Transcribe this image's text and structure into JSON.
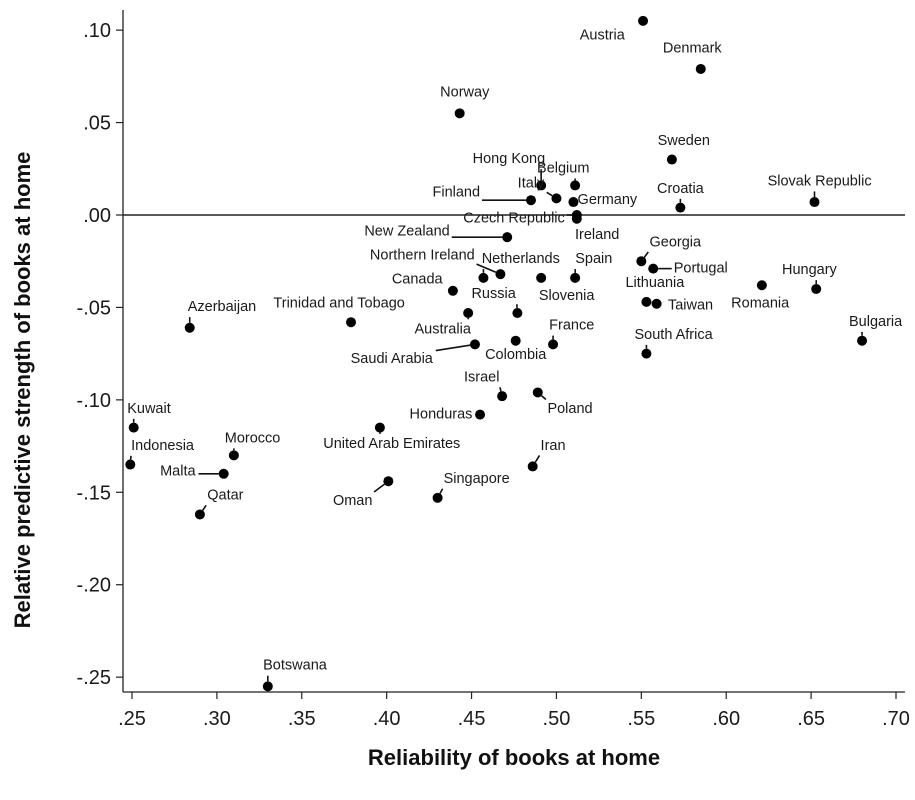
{
  "chart_data": {
    "type": "scatter",
    "xlabel": "Reliability of books at home",
    "ylabel": "Relative predictive strength of books at home",
    "xlim": [
      0.25,
      0.7
    ],
    "ylim": [
      -0.26,
      0.11
    ],
    "xticks": [
      0.25,
      0.3,
      0.35,
      0.4,
      0.45,
      0.5,
      0.55,
      0.6,
      0.65,
      0.7
    ],
    "xtick_labels": [
      ".25",
      ".30",
      ".35",
      ".40",
      ".45",
      ".50",
      ".55",
      ".60",
      ".65",
      ".70"
    ],
    "yticks": [
      0.1,
      0.05,
      0.0,
      -0.05,
      -0.1,
      -0.15,
      -0.2,
      -0.25
    ],
    "ytick_labels": [
      ".10",
      ".05",
      ".00",
      "-.05",
      "-.10",
      "-.15",
      "-.20",
      "-.25"
    ],
    "reference_line_y": 0.0,
    "grid": false,
    "points": [
      {
        "label": "Austria",
        "x": 0.551,
        "y": 0.105,
        "lx": 0.527,
        "ly": 0.095,
        "leader": false
      },
      {
        "label": "Denmark",
        "x": 0.585,
        "y": 0.079,
        "lx": 0.58,
        "ly": 0.088,
        "leader": false
      },
      {
        "label": "Norway",
        "x": 0.443,
        "y": 0.055,
        "lx": 0.446,
        "ly": 0.064,
        "leader": false
      },
      {
        "label": "Sweden",
        "x": 0.568,
        "y": 0.03,
        "lx": 0.575,
        "ly": 0.038,
        "leader": false
      },
      {
        "label": "Hong Kong",
        "x": 0.491,
        "y": 0.016,
        "lx": 0.472,
        "ly": 0.028,
        "leader": true
      },
      {
        "label": "Belgium",
        "x": 0.511,
        "y": 0.016,
        "lx": 0.504,
        "ly": 0.023,
        "leader": true
      },
      {
        "label": "Italy",
        "x": 0.5,
        "y": 0.009,
        "lx": 0.485,
        "ly": 0.015,
        "leader": true
      },
      {
        "label": "Finland",
        "x": 0.485,
        "y": 0.008,
        "lx": 0.441,
        "ly": 0.01,
        "leader": true
      },
      {
        "label": "Germany",
        "x": 0.51,
        "y": 0.007,
        "lx": 0.53,
        "ly": 0.006,
        "leader": true
      },
      {
        "label": "Croatia",
        "x": 0.573,
        "y": 0.004,
        "lx": 0.573,
        "ly": 0.012,
        "leader": true
      },
      {
        "label": "Slovak Republic",
        "x": 0.652,
        "y": 0.007,
        "lx": 0.655,
        "ly": 0.016,
        "leader": true
      },
      {
        "label": "Czech Republic",
        "x": 0.512,
        "y": 0.0,
        "lx": 0.475,
        "ly": -0.004,
        "leader": true
      },
      {
        "label": "New Zealand",
        "x": 0.471,
        "y": -0.012,
        "lx": 0.412,
        "ly": -0.011,
        "leader": true
      },
      {
        "label": "Ireland",
        "x": 0.512,
        "y": -0.002,
        "lx": 0.524,
        "ly": -0.013,
        "leader": false
      },
      {
        "label": "Georgia",
        "x": 0.55,
        "y": -0.025,
        "lx": 0.57,
        "ly": -0.017,
        "leader": true
      },
      {
        "label": "Portugal",
        "x": 0.557,
        "y": -0.029,
        "lx": 0.585,
        "ly": -0.031,
        "leader": true
      },
      {
        "label": "Northern Ireland",
        "x": 0.467,
        "y": -0.032,
        "lx": 0.421,
        "ly": -0.024,
        "leader": true
      },
      {
        "label": "Netherlands",
        "x": 0.457,
        "y": -0.034,
        "lx": 0.479,
        "ly": -0.026,
        "leader": true
      },
      {
        "label": "Spain",
        "x": 0.511,
        "y": -0.034,
        "lx": 0.522,
        "ly": -0.026,
        "leader": true
      },
      {
        "label": "Canada",
        "x": 0.439,
        "y": -0.041,
        "lx": 0.418,
        "ly": -0.037,
        "leader": false
      },
      {
        "label": "Hungary",
        "x": 0.653,
        "y": -0.04,
        "lx": 0.649,
        "ly": -0.032,
        "leader": true
      },
      {
        "label": "Romania",
        "x": 0.621,
        "y": -0.038,
        "lx": 0.62,
        "ly": -0.05,
        "leader": false
      },
      {
        "label": "Lithuania",
        "x": 0.553,
        "y": -0.047,
        "lx": 0.558,
        "ly": -0.039,
        "leader": false
      },
      {
        "label": "Taiwan",
        "x": 0.559,
        "y": -0.048,
        "lx": 0.579,
        "ly": -0.051,
        "leader": false
      },
      {
        "label": "Slovenia",
        "x": 0.491,
        "y": -0.034,
        "lx": 0.506,
        "ly": -0.046,
        "leader": false
      },
      {
        "label": "Russia",
        "x": 0.477,
        "y": -0.053,
        "lx": 0.463,
        "ly": -0.045,
        "leader": true
      },
      {
        "label": "Azerbaijan",
        "x": 0.284,
        "y": -0.061,
        "lx": 0.303,
        "ly": -0.052,
        "leader": true
      },
      {
        "label": "Trinidad and Tobago",
        "x": 0.379,
        "y": -0.058,
        "lx": 0.372,
        "ly": -0.05,
        "leader": false
      },
      {
        "label": "Australia",
        "x": 0.448,
        "y": -0.053,
        "lx": 0.433,
        "ly": -0.064,
        "leader": true
      },
      {
        "label": "France",
        "x": 0.498,
        "y": -0.07,
        "lx": 0.509,
        "ly": -0.062,
        "leader": true
      },
      {
        "label": "Bulgaria",
        "x": 0.68,
        "y": -0.068,
        "lx": 0.688,
        "ly": -0.06,
        "leader": true
      },
      {
        "label": "South Africa",
        "x": 0.553,
        "y": -0.075,
        "lx": 0.569,
        "ly": -0.067,
        "leader": true
      },
      {
        "label": "Saudi Arabia",
        "x": 0.452,
        "y": -0.07,
        "lx": 0.403,
        "ly": -0.08,
        "leader": true
      },
      {
        "label": "Colombia",
        "x": 0.476,
        "y": -0.068,
        "lx": 0.476,
        "ly": -0.078,
        "leader": false
      },
      {
        "label": "Israel",
        "x": 0.468,
        "y": -0.098,
        "lx": 0.456,
        "ly": -0.09,
        "leader": true
      },
      {
        "label": "Poland",
        "x": 0.489,
        "y": -0.096,
        "lx": 0.508,
        "ly": -0.107,
        "leader": true
      },
      {
        "label": "Kuwait",
        "x": 0.251,
        "y": -0.115,
        "lx": 0.26,
        "ly": -0.107,
        "leader": true
      },
      {
        "label": "Honduras",
        "x": 0.455,
        "y": -0.108,
        "lx": 0.432,
        "ly": -0.11,
        "leader": true
      },
      {
        "label": "United Arab Emirates",
        "x": 0.396,
        "y": -0.115,
        "lx": 0.403,
        "ly": -0.126,
        "leader": true
      },
      {
        "label": "Morocco",
        "x": 0.31,
        "y": -0.13,
        "lx": 0.321,
        "ly": -0.123,
        "leader": true
      },
      {
        "label": "Indonesia",
        "x": 0.249,
        "y": -0.135,
        "lx": 0.268,
        "ly": -0.127,
        "leader": true
      },
      {
        "label": "Iran",
        "x": 0.486,
        "y": -0.136,
        "lx": 0.498,
        "ly": -0.127,
        "leader": true
      },
      {
        "label": "Malta",
        "x": 0.304,
        "y": -0.14,
        "lx": 0.277,
        "ly": -0.141,
        "leader": true
      },
      {
        "label": "Singapore",
        "x": 0.43,
        "y": -0.153,
        "lx": 0.453,
        "ly": -0.145,
        "leader": true
      },
      {
        "label": "Oman",
        "x": 0.401,
        "y": -0.144,
        "lx": 0.38,
        "ly": -0.157,
        "leader": true
      },
      {
        "label": "Qatar",
        "x": 0.29,
        "y": -0.162,
        "lx": 0.305,
        "ly": -0.154,
        "leader": true
      },
      {
        "label": "Botswana",
        "x": 0.33,
        "y": -0.255,
        "lx": 0.346,
        "ly": -0.246,
        "leader": true
      }
    ]
  }
}
